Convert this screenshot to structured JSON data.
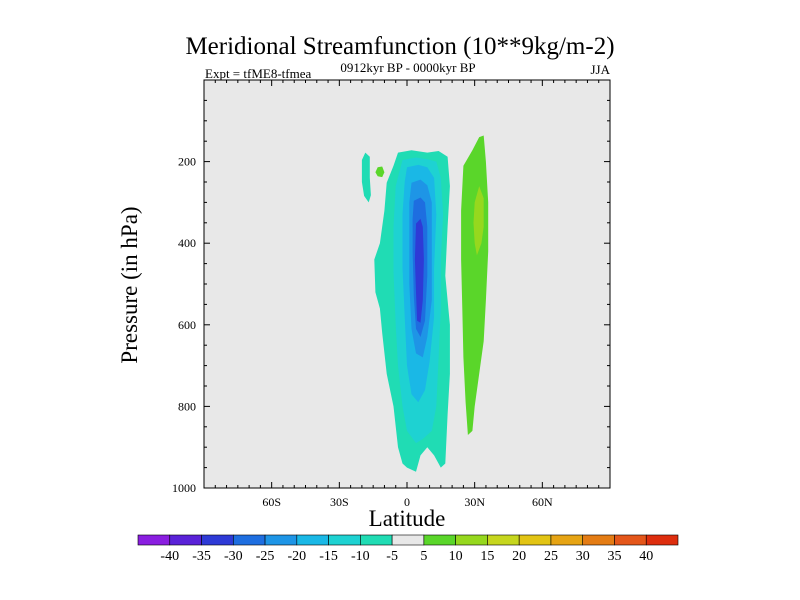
{
  "chart_data": {
    "type": "contour",
    "title": "Meridional Streamfunction (10**9kg/m-2)",
    "subtitle_left": "Expt = tfME8-tfmea",
    "subtitle_center": "0912kyr BP - 0000kyr BP",
    "subtitle_right": "JJA",
    "xlabel": "Latitude",
    "ylabel": "Pressure (in hPa)",
    "xlim": [
      -90,
      90
    ],
    "ylim": [
      1000,
      0
    ],
    "x_ticks": [
      {
        "value": -60,
        "label": "60S"
      },
      {
        "value": -30,
        "label": "30S"
      },
      {
        "value": 0,
        "label": "0"
      },
      {
        "value": 30,
        "label": "30N"
      },
      {
        "value": 60,
        "label": "60N"
      }
    ],
    "y_ticks": [
      {
        "value": 200,
        "label": "200"
      },
      {
        "value": 400,
        "label": "400"
      },
      {
        "value": 600,
        "label": "600"
      },
      {
        "value": 800,
        "label": "800"
      },
      {
        "value": 1000,
        "label": "1000"
      }
    ],
    "background_color": "#e8e8e8",
    "colorbar": {
      "levels": [
        "-40",
        "-35",
        "-30",
        "-25",
        "-20",
        "-15",
        "-10",
        "-5",
        "5",
        "10",
        "15",
        "20",
        "25",
        "30",
        "35",
        "40"
      ],
      "colors": [
        "#8a1ee0",
        "#5a22d8",
        "#2e3ad6",
        "#1e6ee0",
        "#1e95e6",
        "#1ab8e6",
        "#1ed2d2",
        "#20dcb4",
        "#e8e8e8",
        "#5ad62a",
        "#96d81e",
        "#c6d61e",
        "#e2c414",
        "#e6a414",
        "#e47c14",
        "#e4561a",
        "#de2e0e"
      ]
    },
    "contours": [
      {
        "level": "-5",
        "color": "#20dcb4",
        "points": [
          [
            -18.5,
            178
          ],
          [
            -16.5,
            188
          ],
          [
            -16.5,
            240
          ],
          [
            -16,
            282
          ],
          [
            -17,
            300
          ],
          [
            -19,
            284
          ],
          [
            -20,
            250
          ],
          [
            -20,
            196
          ]
        ]
      },
      {
        "level": "-5",
        "color": "#20dcb4",
        "points": [
          [
            -4,
            178
          ],
          [
            2,
            172
          ],
          [
            9,
            178
          ],
          [
            14,
            174
          ],
          [
            18,
            188
          ],
          [
            19,
            260
          ],
          [
            18,
            360
          ],
          [
            17,
            480
          ],
          [
            19,
            600
          ],
          [
            19,
            720
          ],
          [
            18,
            820
          ],
          [
            17,
            940
          ],
          [
            15,
            950
          ],
          [
            12,
            920
          ],
          [
            9,
            900
          ],
          [
            6,
            920
          ],
          [
            4,
            960
          ],
          [
            0,
            950
          ],
          [
            -2,
            940
          ],
          [
            -4,
            900
          ],
          [
            -6,
            800
          ],
          [
            -9,
            720
          ],
          [
            -11,
            620
          ],
          [
            -12,
            560
          ],
          [
            -14,
            520
          ],
          [
            -14.5,
            440
          ],
          [
            -12,
            400
          ],
          [
            -10,
            320
          ],
          [
            -9,
            252
          ],
          [
            -6,
            210
          ]
        ]
      },
      {
        "level": "-10",
        "color": "#1ed2d2",
        "points": [
          [
            -2,
            196
          ],
          [
            4,
            190
          ],
          [
            9,
            194
          ],
          [
            13,
            200
          ],
          [
            15,
            240
          ],
          [
            16,
            330
          ],
          [
            15,
            440
          ],
          [
            15,
            560
          ],
          [
            14,
            680
          ],
          [
            13,
            800
          ],
          [
            11,
            860
          ],
          [
            7,
            880
          ],
          [
            4,
            890
          ],
          [
            0,
            860
          ],
          [
            -2,
            800
          ],
          [
            -4,
            700
          ],
          [
            -5,
            600
          ],
          [
            -6,
            470
          ],
          [
            -6,
            360
          ],
          [
            -5,
            260
          ]
        ]
      },
      {
        "level": "-15",
        "color": "#1ab8e6",
        "points": [
          [
            0,
            214
          ],
          [
            5,
            208
          ],
          [
            9,
            214
          ],
          [
            12,
            240
          ],
          [
            13,
            330
          ],
          [
            12,
            460
          ],
          [
            12,
            580
          ],
          [
            10,
            690
          ],
          [
            8,
            760
          ],
          [
            5,
            790
          ],
          [
            2,
            770
          ],
          [
            0,
            700
          ],
          [
            -1,
            580
          ],
          [
            -2,
            460
          ],
          [
            -2,
            330
          ],
          [
            -1,
            250
          ]
        ]
      },
      {
        "level": "-20",
        "color": "#1e95e6",
        "points": [
          [
            2,
            252
          ],
          [
            6,
            244
          ],
          [
            9,
            258
          ],
          [
            11,
            300
          ],
          [
            11,
            420
          ],
          [
            11,
            540
          ],
          [
            9,
            630
          ],
          [
            7,
            680
          ],
          [
            4,
            670
          ],
          [
            2,
            610
          ],
          [
            1,
            500
          ],
          [
            1,
            380
          ],
          [
            1,
            300
          ]
        ]
      },
      {
        "level": "-25",
        "color": "#1e6ee0",
        "points": [
          [
            3,
            296
          ],
          [
            6,
            288
          ],
          [
            8,
            300
          ],
          [
            9,
            360
          ],
          [
            9,
            480
          ],
          [
            8,
            590
          ],
          [
            6,
            630
          ],
          [
            4,
            610
          ],
          [
            3,
            530
          ],
          [
            2.5,
            420
          ],
          [
            2.5,
            340
          ]
        ]
      },
      {
        "level": "-30",
        "color": "#2e3ad6",
        "points": [
          [
            4,
            352
          ],
          [
            6,
            340
          ],
          [
            7,
            360
          ],
          [
            7.5,
            440
          ],
          [
            7,
            540
          ],
          [
            6,
            595
          ],
          [
            4.5,
            590
          ],
          [
            4,
            520
          ],
          [
            3.5,
            440
          ]
        ]
      },
      {
        "level": "5",
        "color": "#5ad62a",
        "points": [
          [
            -11,
            212
          ],
          [
            -10,
            226
          ],
          [
            -11,
            238
          ],
          [
            -13,
            236
          ],
          [
            -14,
            226
          ],
          [
            -13,
            214
          ]
        ]
      },
      {
        "level": "5",
        "color": "#5ad62a",
        "points": [
          [
            25,
            210
          ],
          [
            29,
            172
          ],
          [
            32,
            140
          ],
          [
            34,
            136
          ],
          [
            35,
            200
          ],
          [
            36,
            300
          ],
          [
            36,
            420
          ],
          [
            35,
            540
          ],
          [
            34,
            640
          ],
          [
            32,
            720
          ],
          [
            30,
            800
          ],
          [
            29,
            860
          ],
          [
            27,
            870
          ],
          [
            26,
            790
          ],
          [
            25,
            680
          ],
          [
            24.5,
            560
          ],
          [
            24,
            440
          ],
          [
            24,
            320
          ]
        ]
      },
      {
        "level": "10",
        "color": "#96d81e",
        "points": [
          [
            30,
            300
          ],
          [
            32,
            260
          ],
          [
            34,
            290
          ],
          [
            34,
            360
          ],
          [
            33,
            400
          ],
          [
            31,
            430
          ],
          [
            30,
            400
          ],
          [
            29.5,
            350
          ]
        ]
      }
    ]
  }
}
